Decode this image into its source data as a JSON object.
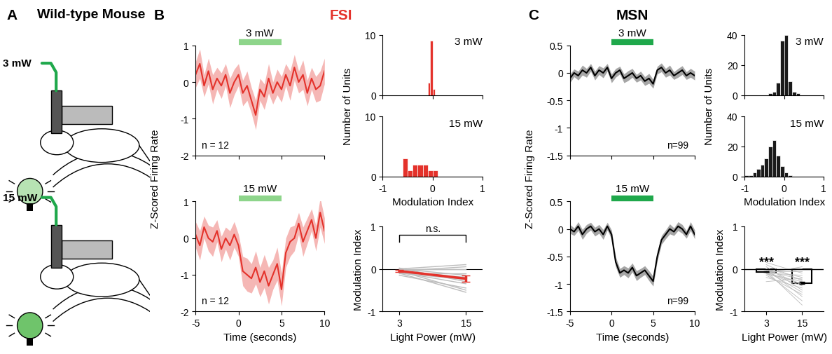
{
  "figure": {
    "panels": [
      {
        "label": "A",
        "title": "Wild-type Mouse",
        "light_powers": [
          "3 mW",
          "15 mW"
        ]
      },
      {
        "label": "B",
        "title": "FSI",
        "color": "#e4322b"
      },
      {
        "label": "C",
        "title": "MSN",
        "color": "#000000"
      }
    ]
  },
  "chart_data": [
    {
      "type": "line",
      "x": [
        -5,
        -4.5,
        -4,
        -3.5,
        -3,
        -2.5,
        -2,
        -1.5,
        -1,
        -0.5,
        0,
        0.5,
        1,
        1.5,
        2,
        2.5,
        3,
        3.5,
        4,
        4.5,
        5,
        5.5,
        6,
        6.5,
        7,
        7.5,
        8,
        8.5,
        9,
        9.5,
        10
      ],
      "xlim": [
        -5,
        10
      ],
      "xticks": [
        -5,
        0,
        5,
        10
      ],
      "ylim": [
        -2,
        1
      ],
      "yticks": [
        -2,
        -1,
        0,
        1
      ],
      "tick_labels": "y",
      "stimulus": {
        "start": 0,
        "end": 5,
        "label": "3 mW",
        "color": "#8ed58b"
      },
      "n_label": "n = 12",
      "series": [
        {
          "color": "#e4322b",
          "values": [
            0.2,
            0.5,
            -0.1,
            0.3,
            -0.2,
            0.1,
            -0.1,
            0.2,
            -0.3,
            0.0,
            0.2,
            -0.3,
            -0.1,
            -0.5,
            -0.9,
            -0.2,
            -0.4,
            0.1,
            -0.3,
            0.0,
            -0.2,
            0.2,
            -0.1,
            0.4,
            0.0,
            0.2,
            -0.3,
            0.1,
            -0.2,
            -0.1,
            0.3
          ],
          "error": [
            0.35,
            0.4,
            0.3,
            0.35,
            0.4,
            0.3,
            0.35,
            0.3,
            0.4,
            0.35,
            0.3,
            0.35,
            0.4,
            0.35,
            0.4,
            0.3,
            0.35,
            0.4,
            0.3,
            0.35,
            0.35,
            0.3,
            0.4,
            0.35,
            0.3,
            0.4,
            0.35,
            0.3,
            0.35,
            0.4,
            0.35
          ]
        }
      ]
    },
    {
      "type": "line",
      "x": [
        -5,
        -4.5,
        -4,
        -3.5,
        -3,
        -2.5,
        -2,
        -1.5,
        -1,
        -0.5,
        0,
        0.5,
        1,
        1.5,
        2,
        2.5,
        3,
        3.5,
        4,
        4.5,
        5,
        5.5,
        6,
        6.5,
        7,
        7.5,
        8,
        8.5,
        9,
        9.5,
        10
      ],
      "xlim": [
        -5,
        10
      ],
      "xticks": [
        -5,
        0,
        5,
        10
      ],
      "ylim": [
        -2,
        1
      ],
      "yticks": [
        -2,
        -1,
        0,
        1
      ],
      "x_label": "Time (seconds)",
      "y_label": "Z-Scored Firing Rate",
      "stimulus": {
        "start": 0,
        "end": 5,
        "label": "15 mW",
        "color": "#8ed58b"
      },
      "n_label": "n = 12",
      "series": [
        {
          "color": "#e4322b",
          "values": [
            0.1,
            -0.2,
            0.3,
            0.0,
            -0.1,
            0.2,
            -0.3,
            0.0,
            -0.2,
            0.1,
            -0.2,
            -0.9,
            -1.0,
            -1.1,
            -0.8,
            -1.2,
            -0.9,
            -1.3,
            -1.0,
            -0.7,
            -1.4,
            -0.4,
            -0.1,
            0.0,
            0.4,
            -0.1,
            0.2,
            0.5,
            0.0,
            0.7,
            0.2
          ],
          "error": [
            0.35,
            0.4,
            0.3,
            0.35,
            0.4,
            0.3,
            0.35,
            0.3,
            0.4,
            0.35,
            0.3,
            0.4,
            0.45,
            0.4,
            0.45,
            0.4,
            0.45,
            0.5,
            0.4,
            0.45,
            0.45,
            0.4,
            0.4,
            0.35,
            0.3,
            0.4,
            0.35,
            0.3,
            0.35,
            0.4,
            0.35
          ]
        }
      ]
    },
    {
      "type": "histogram",
      "title": "3 mW",
      "bins": [
        -0.1,
        -0.05,
        0,
        0.05
      ],
      "counts": [
        2,
        9,
        1
      ],
      "color": "#e4322b",
      "xlim": [
        -1,
        1
      ],
      "xticks": [
        -1,
        0,
        1
      ],
      "ylim": [
        0,
        10
      ],
      "yticks": [
        0,
        10
      ],
      "tick_labels": "y",
      "y_label": "Number of Units"
    },
    {
      "type": "histogram",
      "title": "15 mW",
      "bins": [
        -0.6,
        -0.5,
        -0.4,
        -0.3,
        -0.2,
        -0.1,
        0,
        0.1
      ],
      "counts": [
        3,
        1,
        2,
        2,
        2,
        1,
        1
      ],
      "color": "#e4322b",
      "xlim": [
        -1,
        1
      ],
      "xticks": [
        -1,
        0,
        1
      ],
      "ylim": [
        0,
        10
      ],
      "yticks": [
        0,
        10
      ],
      "x_label": "Modulation Index"
    },
    {
      "type": "line",
      "x": [
        3,
        15
      ],
      "xlim": [
        0,
        18
      ],
      "xticks": [
        3,
        15
      ],
      "ylim": [
        -1,
        1
      ],
      "yticks": [
        -1,
        0,
        1
      ],
      "x_label": "Light Power (mW)",
      "y_label": "Modulation Index",
      "annotation": "n.s.",
      "series": [
        {
          "color": "#bdbdbd",
          "values": [
            0.0,
            0.1
          ]
        },
        {
          "color": "#bdbdbd",
          "values": [
            -0.05,
            0.05
          ]
        },
        {
          "color": "#bdbdbd",
          "values": [
            -0.1,
            -0.1
          ]
        },
        {
          "color": "#bdbdbd",
          "values": [
            0.0,
            -0.15
          ]
        },
        {
          "color": "#bdbdbd",
          "values": [
            -0.05,
            -0.2
          ]
        },
        {
          "color": "#bdbdbd",
          "values": [
            -0.1,
            -0.25
          ]
        },
        {
          "color": "#bdbdbd",
          "values": [
            0.02,
            -0.3
          ]
        },
        {
          "color": "#bdbdbd",
          "values": [
            -0.08,
            -0.35
          ]
        },
        {
          "color": "#bdbdbd",
          "values": [
            -0.15,
            -0.45
          ]
        },
        {
          "color": "#bdbdbd",
          "values": [
            -0.05,
            -0.5
          ]
        },
        {
          "color": "#bdbdbd",
          "values": [
            -0.1,
            -0.55
          ]
        },
        {
          "color": "#bdbdbd",
          "values": [
            0.0,
            0.0
          ]
        },
        {
          "color": "#e4322b",
          "values": [
            -0.05,
            -0.23
          ],
          "error": [
            0.02,
            0.07
          ]
        }
      ]
    },
    {
      "type": "line",
      "x": [
        -5,
        -4.5,
        -4,
        -3.5,
        -3,
        -2.5,
        -2,
        -1.5,
        -1,
        -0.5,
        0,
        0.5,
        1,
        1.5,
        2,
        2.5,
        3,
        3.5,
        4,
        4.5,
        5,
        5.5,
        6,
        6.5,
        7,
        7.5,
        8,
        8.5,
        9,
        9.5,
        10
      ],
      "xlim": [
        -5,
        10
      ],
      "xticks": [
        -5,
        0,
        5,
        10
      ],
      "ylim": [
        -1.5,
        0.5
      ],
      "yticks": [
        -1.5,
        -1,
        -0.5,
        0,
        0.5
      ],
      "tick_labels": "y",
      "stimulus": {
        "start": 0,
        "end": 5,
        "label": "3 mW",
        "color": "#1fa84b"
      },
      "n_label": "n=99",
      "series": [
        {
          "color": "#000000",
          "values": [
            -0.1,
            0.0,
            -0.05,
            0.05,
            0.0,
            0.1,
            -0.05,
            0.05,
            0.0,
            0.1,
            -0.1,
            0.0,
            0.05,
            -0.1,
            -0.05,
            0.0,
            -0.1,
            -0.05,
            -0.15,
            -0.1,
            -0.2,
            0.05,
            0.1,
            0.0,
            0.05,
            -0.05,
            0.0,
            0.05,
            -0.05,
            0.0,
            -0.05
          ],
          "error": [
            0.08,
            0.07,
            0.08,
            0.09,
            0.08,
            0.07,
            0.08,
            0.08,
            0.09,
            0.07,
            0.08,
            0.08,
            0.07,
            0.08,
            0.09,
            0.08,
            0.07,
            0.08,
            0.08,
            0.09,
            0.08,
            0.07,
            0.08,
            0.08,
            0.09,
            0.07,
            0.08,
            0.08,
            0.07,
            0.08,
            0.08
          ]
        }
      ]
    },
    {
      "type": "line",
      "x": [
        -5,
        -4.5,
        -4,
        -3.5,
        -3,
        -2.5,
        -2,
        -1.5,
        -1,
        -0.5,
        0,
        0.5,
        1,
        1.5,
        2,
        2.5,
        3,
        3.5,
        4,
        4.5,
        5,
        5.5,
        6,
        6.5,
        7,
        7.5,
        8,
        8.5,
        9,
        9.5,
        10
      ],
      "xlim": [
        -5,
        10
      ],
      "xticks": [
        -5,
        0,
        5,
        10
      ],
      "ylim": [
        -1.5,
        0.5
      ],
      "yticks": [
        -1.5,
        -1,
        -0.5,
        0,
        0.5
      ],
      "x_label": "Time (seconds)",
      "y_label": "Z-Scored Firing Rate",
      "stimulus": {
        "start": 0,
        "end": 5,
        "label": "15 mW",
        "color": "#1fa84b"
      },
      "n_label": "n=99",
      "series": [
        {
          "color": "#000000",
          "values": [
            0.0,
            -0.05,
            0.05,
            -0.1,
            0.0,
            0.05,
            -0.05,
            0.0,
            -0.1,
            0.05,
            -0.1,
            -0.6,
            -0.8,
            -0.75,
            -0.8,
            -0.7,
            -0.85,
            -0.8,
            -0.75,
            -0.85,
            -0.95,
            -0.5,
            -0.2,
            -0.1,
            0.0,
            -0.05,
            0.05,
            0.0,
            -0.1,
            0.05,
            -0.1
          ],
          "error": [
            0.08,
            0.07,
            0.08,
            0.09,
            0.08,
            0.07,
            0.08,
            0.08,
            0.09,
            0.07,
            0.08,
            0.09,
            0.08,
            0.08,
            0.09,
            0.08,
            0.09,
            0.08,
            0.08,
            0.09,
            0.09,
            0.08,
            0.08,
            0.08,
            0.09,
            0.07,
            0.08,
            0.08,
            0.07,
            0.08,
            0.08
          ]
        }
      ]
    },
    {
      "type": "histogram",
      "title": "3 mW",
      "bins": [
        -0.4,
        -0.3,
        -0.2,
        -0.1,
        0,
        0.1,
        0.2,
        0.3,
        0.4
      ],
      "counts": [
        1,
        2,
        8,
        36,
        40,
        9,
        2,
        1
      ],
      "color": "#1a1a1a",
      "xlim": [
        -1,
        1
      ],
      "xticks": [
        -1,
        0,
        1
      ],
      "ylim": [
        0,
        40
      ],
      "yticks": [
        0,
        20,
        40
      ],
      "tick_labels": "y",
      "y_label": "Number of Units"
    },
    {
      "type": "histogram",
      "title": "15 mW",
      "bins": [
        -1,
        -0.9,
        -0.8,
        -0.7,
        -0.6,
        -0.5,
        -0.4,
        -0.3,
        -0.2,
        -0.1,
        0,
        0.1,
        0.2,
        0.3
      ],
      "counts": [
        1,
        1,
        3,
        5,
        8,
        12,
        20,
        24,
        14,
        7,
        3,
        1,
        0
      ],
      "color": "#1a1a1a",
      "xlim": [
        -1,
        1
      ],
      "xticks": [
        -1,
        0,
        1
      ],
      "ylim": [
        0,
        40
      ],
      "yticks": [
        0,
        20,
        40
      ],
      "x_label": "Modulation Index"
    },
    {
      "type": "bar",
      "categories": [
        "3",
        "15"
      ],
      "values": [
        -0.07,
        -0.33
      ],
      "error": [
        0.01,
        0.02
      ],
      "color": "#ffffff",
      "ylim": [
        -1,
        1
      ],
      "yticks": [
        -1,
        0,
        1
      ],
      "x_label": "Light Power (mW)",
      "y_label": "Modulation Index",
      "significance": [
        "***",
        "***"
      ],
      "units": {
        "color": "#bdbdbd",
        "values": [
          [
            -0.05,
            -0.85
          ],
          [
            -0.1,
            -0.75
          ],
          [
            0.0,
            -0.65
          ],
          [
            -0.15,
            -0.6
          ],
          [
            -0.05,
            -0.55
          ],
          [
            0.05,
            -0.5
          ],
          [
            -0.2,
            -0.45
          ],
          [
            -0.1,
            -0.4
          ],
          [
            0.0,
            -0.38
          ],
          [
            -0.08,
            -0.35
          ],
          [
            -0.12,
            -0.3
          ],
          [
            0.1,
            -0.28
          ],
          [
            -0.05,
            -0.25
          ],
          [
            -0.3,
            -0.22
          ],
          [
            0.0,
            -0.2
          ],
          [
            -0.1,
            -0.15
          ],
          [
            0.15,
            -0.1
          ],
          [
            -0.05,
            -0.05
          ],
          [
            -0.02,
            0.0
          ],
          [
            -0.1,
            0.05
          ]
        ]
      }
    }
  ]
}
